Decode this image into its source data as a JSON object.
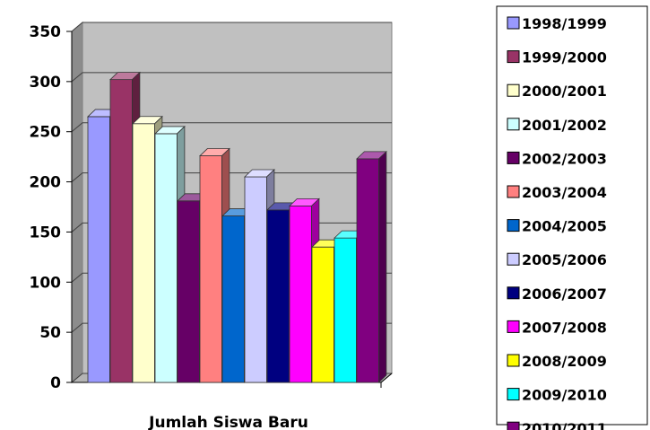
{
  "chart_data": {
    "type": "bar",
    "title": "",
    "xlabel": "Jumlah Siswa Baru",
    "ylabel": "",
    "ylim": [
      0,
      350
    ],
    "yticks": [
      0,
      50,
      100,
      150,
      200,
      250,
      300,
      350
    ],
    "grid": true,
    "legend": "right",
    "series": [
      {
        "name": "1998/1999",
        "value": 265,
        "color": "#9999ff"
      },
      {
        "name": "1999/2000",
        "value": 302,
        "color": "#993366"
      },
      {
        "name": "2000/2001",
        "value": 258,
        "color": "#ffffcc"
      },
      {
        "name": "2001/2002",
        "value": 248,
        "color": "#ccffff"
      },
      {
        "name": "2002/2003",
        "value": 181,
        "color": "#660066"
      },
      {
        "name": "2003/2004",
        "value": 226,
        "color": "#ff8080"
      },
      {
        "name": "2004/2005",
        "value": 166,
        "color": "#0066cc"
      },
      {
        "name": "2005/2006",
        "value": 205,
        "color": "#ccccff"
      },
      {
        "name": "2006/2007",
        "value": 172,
        "color": "#000080"
      },
      {
        "name": "2007/2008",
        "value": 176,
        "color": "#ff00ff"
      },
      {
        "name": "2008/2009",
        "value": 135,
        "color": "#ffff00"
      },
      {
        "name": "2009/2010",
        "value": 144,
        "color": "#00ffff"
      },
      {
        "name": "2010/2011",
        "value": 223,
        "color": "#800080"
      }
    ]
  }
}
